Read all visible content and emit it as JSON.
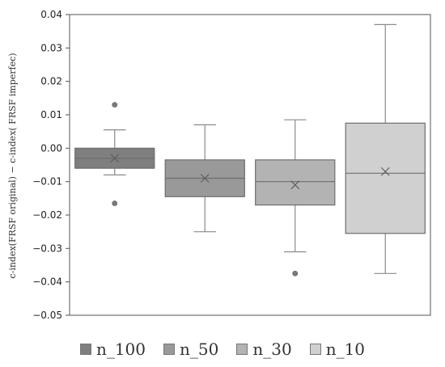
{
  "chart_data": {
    "type": "box",
    "title": "",
    "xlabel": "",
    "ylabel": "c-index(FRSF original) − c-index( FRSF imperfec)",
    "ylim": [
      -0.05,
      0.04
    ],
    "yticks": [
      "0.04",
      "0.03",
      "0.02",
      "0.01",
      "0.00",
      "−0.01",
      "−0.02",
      "−0.03",
      "−0.04",
      "−0.05"
    ],
    "ytick_values": [
      0.04,
      0.03,
      0.02,
      0.01,
      0.0,
      -0.01,
      -0.02,
      -0.03,
      -0.04,
      -0.05
    ],
    "grid": false,
    "legend_position": "bottom",
    "series": [
      {
        "name": "n_100",
        "color": "#7f7f7f",
        "whisker_low": -0.008,
        "q1": -0.006,
        "median": -0.003,
        "q3": 0.0,
        "whisker_high": 0.0055,
        "mean": -0.003,
        "outliers": [
          0.013,
          -0.0165
        ]
      },
      {
        "name": "n_50",
        "color": "#999999",
        "whisker_low": -0.025,
        "q1": -0.0145,
        "median": -0.009,
        "q3": -0.0035,
        "whisker_high": 0.007,
        "mean": -0.009,
        "outliers": []
      },
      {
        "name": "n_30",
        "color": "#b3b3b3",
        "whisker_low": -0.031,
        "q1": -0.017,
        "median": -0.01,
        "q3": -0.0035,
        "whisker_high": 0.0085,
        "mean": -0.011,
        "outliers": [
          -0.0375
        ]
      },
      {
        "name": "n_10",
        "color": "#d0d0d0",
        "whisker_low": -0.0375,
        "q1": -0.0255,
        "median": -0.0075,
        "q3": 0.0075,
        "whisker_high": 0.037,
        "mean": -0.007,
        "outliers": []
      }
    ]
  }
}
